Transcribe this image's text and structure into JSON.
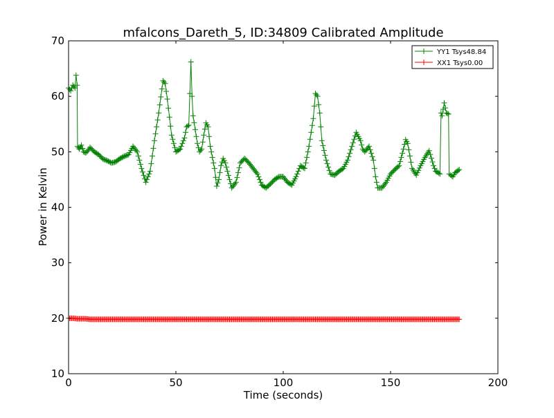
{
  "chart_data": {
    "type": "line",
    "title": "mfalcons_Dareth_5, ID:34809 Calibrated Amplitude",
    "xlabel": "Time (seconds)",
    "ylabel": "Power in Kelvin",
    "xlim": [
      0,
      200
    ],
    "ylim": [
      10,
      70
    ],
    "xticks": [
      0,
      50,
      100,
      150,
      200
    ],
    "yticks": [
      10,
      20,
      30,
      40,
      50,
      60,
      70
    ],
    "grid": false,
    "legend_position": "top-right",
    "marker": "+",
    "series": [
      {
        "name": "YY1 Tsys48.84",
        "color": "#008000",
        "points": [
          [
            0,
            61.5
          ],
          [
            1,
            61.0
          ],
          [
            2,
            62.0
          ],
          [
            3,
            61.5
          ],
          [
            3.5,
            63.8
          ],
          [
            4,
            62.0
          ],
          [
            4.2,
            51.0
          ],
          [
            5,
            50.5
          ],
          [
            6,
            51.2
          ],
          [
            7,
            50.0
          ],
          [
            8,
            49.8
          ],
          [
            9,
            50.2
          ],
          [
            10,
            50.8
          ],
          [
            12,
            50.0
          ],
          [
            14,
            49.5
          ],
          [
            16,
            48.7
          ],
          [
            18,
            48.4
          ],
          [
            20,
            48.0
          ],
          [
            22,
            48.2
          ],
          [
            24,
            48.8
          ],
          [
            26,
            49.2
          ],
          [
            28,
            49.5
          ],
          [
            30,
            51.0
          ],
          [
            32,
            50.0
          ],
          [
            34,
            47.0
          ],
          [
            36,
            44.5
          ],
          [
            38,
            46.5
          ],
          [
            40,
            52.0
          ],
          [
            42,
            57.0
          ],
          [
            44,
            62.8
          ],
          [
            45,
            62.3
          ],
          [
            46,
            59.5
          ],
          [
            48,
            53.0
          ],
          [
            50,
            50.0
          ],
          [
            52,
            50.5
          ],
          [
            54,
            52.5
          ],
          [
            55,
            54.5
          ],
          [
            56,
            54.8
          ],
          [
            57,
            66.2
          ],
          [
            57.5,
            60.0
          ],
          [
            58,
            56.5
          ],
          [
            59,
            54.0
          ],
          [
            60,
            51.5
          ],
          [
            61,
            50.0
          ],
          [
            62,
            50.5
          ],
          [
            63,
            53.0
          ],
          [
            64,
            55.2
          ],
          [
            65,
            54.5
          ],
          [
            66,
            51.0
          ],
          [
            68,
            47.0
          ],
          [
            69,
            43.8
          ],
          [
            70,
            45.0
          ],
          [
            71,
            47.5
          ],
          [
            72,
            48.8
          ],
          [
            73,
            48.0
          ],
          [
            75,
            45.0
          ],
          [
            76,
            43.5
          ],
          [
            78,
            44.5
          ],
          [
            80,
            48.0
          ],
          [
            82,
            48.8
          ],
          [
            84,
            48.0
          ],
          [
            86,
            47.0
          ],
          [
            88,
            46.0
          ],
          [
            90,
            44.0
          ],
          [
            92,
            43.5
          ],
          [
            94,
            44.2
          ],
          [
            96,
            45.0
          ],
          [
            98,
            45.5
          ],
          [
            100,
            45.5
          ],
          [
            102,
            44.5
          ],
          [
            104,
            44.0
          ],
          [
            106,
            45.5
          ],
          [
            108,
            47.5
          ],
          [
            110,
            47.0
          ],
          [
            112,
            51.0
          ],
          [
            114,
            56.0
          ],
          [
            115,
            60.5
          ],
          [
            116,
            60.0
          ],
          [
            117,
            57.0
          ],
          [
            118,
            52.0
          ],
          [
            120,
            48.5
          ],
          [
            122,
            46.0
          ],
          [
            124,
            45.8
          ],
          [
            126,
            46.5
          ],
          [
            128,
            47.0
          ],
          [
            130,
            48.5
          ],
          [
            132,
            51.0
          ],
          [
            134,
            53.5
          ],
          [
            136,
            52.0
          ],
          [
            137,
            50.5
          ],
          [
            138,
            50.0
          ],
          [
            140,
            51.0
          ],
          [
            142,
            48.5
          ],
          [
            143,
            45.5
          ],
          [
            144,
            43.5
          ],
          [
            146,
            43.5
          ],
          [
            148,
            44.5
          ],
          [
            150,
            46.0
          ],
          [
            152,
            46.8
          ],
          [
            154,
            47.5
          ],
          [
            156,
            50.5
          ],
          [
            157,
            52.2
          ],
          [
            158,
            51.5
          ],
          [
            160,
            47.0
          ],
          [
            162,
            45.8
          ],
          [
            164,
            47.5
          ],
          [
            166,
            49.0
          ],
          [
            168,
            50.2
          ],
          [
            170,
            47.5
          ],
          [
            171,
            46.5
          ],
          [
            172,
            46.3
          ],
          [
            173,
            46.0
          ],
          [
            173.5,
            57.0
          ],
          [
            174,
            56.5
          ],
          [
            175,
            58.8
          ],
          [
            176,
            57.0
          ],
          [
            177,
            56.8
          ],
          [
            177.3,
            46.0
          ],
          [
            178,
            45.8
          ],
          [
            179,
            45.5
          ],
          [
            180,
            46.2
          ],
          [
            181,
            46.5
          ],
          [
            182,
            46.8
          ]
        ]
      },
      {
        "name": "XX1 Tsys0.00",
        "color": "#ff0000",
        "points": [
          [
            0,
            20.0
          ],
          [
            2,
            20.0
          ],
          [
            4,
            19.9
          ],
          [
            6,
            19.9
          ],
          [
            8,
            19.9
          ],
          [
            10,
            19.8
          ],
          [
            15,
            19.8
          ],
          [
            20,
            19.8
          ],
          [
            30,
            19.8
          ],
          [
            40,
            19.8
          ],
          [
            50,
            19.8
          ],
          [
            60,
            19.8
          ],
          [
            70,
            19.8
          ],
          [
            80,
            19.8
          ],
          [
            90,
            19.8
          ],
          [
            100,
            19.8
          ],
          [
            110,
            19.8
          ],
          [
            120,
            19.8
          ],
          [
            130,
            19.8
          ],
          [
            140,
            19.8
          ],
          [
            150,
            19.8
          ],
          [
            160,
            19.8
          ],
          [
            170,
            19.8
          ],
          [
            175,
            19.8
          ],
          [
            178,
            19.8
          ],
          [
            180,
            19.8
          ],
          [
            182,
            19.8
          ]
        ]
      }
    ]
  }
}
